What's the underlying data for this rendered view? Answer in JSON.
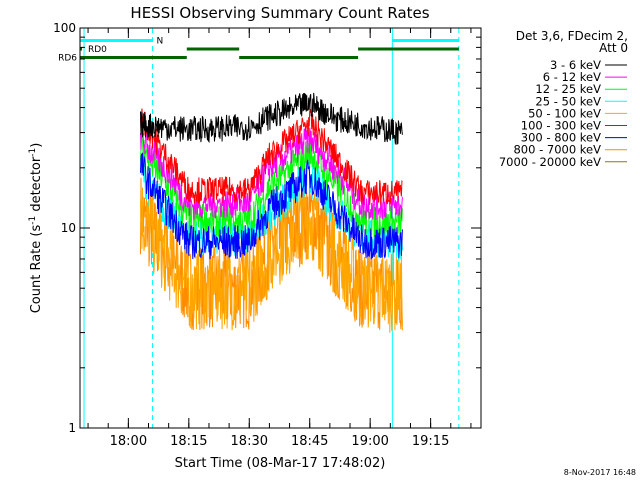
{
  "chart_data": {
    "type": "line",
    "title": "HESSI Observing Summary Count Rates",
    "xlabel": "Start Time (08-Mar-17 17:48:02)",
    "ylabel_main": "Count Rate (s",
    "ylabel_sup": "-1",
    "ylabel_tail": " detector",
    "ylabel_close": ")",
    "yscale": "log",
    "ylim": [
      1,
      100
    ],
    "y_ticks": [
      {
        "value": 1,
        "label": "1"
      },
      {
        "value": 10,
        "label": "10"
      },
      {
        "value": 100,
        "label": "100"
      }
    ],
    "xlim_minutes": [
      -12.0,
      87.5
    ],
    "x_ticks": [
      {
        "t": 0,
        "label": "18:00"
      },
      {
        "t": 15,
        "label": "18:15"
      },
      {
        "t": 30,
        "label": "18:30"
      },
      {
        "t": 45,
        "label": "18:45"
      },
      {
        "t": 60,
        "label": "19:00"
      },
      {
        "t": 75,
        "label": "19:15"
      }
    ],
    "legend_header": [
      "Det 3,6, FDecim 2,",
      "Att 0"
    ],
    "legend_position": "right",
    "timestamp": "8-Nov-2017 16:48",
    "series": [
      {
        "name": "3 - 6 keV",
        "color": "#000000",
        "x": [
          3,
          15,
          30,
          35,
          45,
          52,
          60,
          68
        ],
        "y": [
          33,
          31,
          32,
          36,
          42,
          35,
          32,
          30
        ],
        "noise": 0.07
      },
      {
        "name": "6 - 12 keV",
        "color": "#ff00ff",
        "x": [
          3,
          5,
          10,
          15,
          30,
          35,
          45,
          52,
          58,
          68
        ],
        "y": [
          29,
          25,
          19,
          13,
          13.5,
          20,
          28,
          19,
          13,
          13
        ],
        "noise": 0.08
      },
      {
        "name": "12 - 25 keV",
        "color": "#00ff00",
        "x": [
          3,
          5,
          10,
          15,
          30,
          35,
          45,
          52,
          58,
          68
        ],
        "y": [
          26,
          22,
          16,
          11,
          11,
          16,
          24,
          16,
          11,
          10.5
        ],
        "noise": 0.09
      },
      {
        "name": "25 - 50 keV",
        "color": "#00ffff",
        "x": [
          3,
          5,
          10,
          15,
          30,
          35,
          45,
          52,
          58,
          68
        ],
        "y": [
          20,
          16,
          12,
          9,
          9,
          12,
          18,
          12,
          9,
          8.5
        ],
        "noise": 0.1
      },
      {
        "name": "50 - 100 keV",
        "color": "#ffa500",
        "x": [
          3,
          5,
          10,
          15,
          30,
          35,
          45,
          52,
          58,
          68
        ],
        "y": [
          12,
          10,
          7,
          5,
          5,
          7.5,
          11.5,
          7,
          5,
          4.8
        ],
        "noise": 0.22
      },
      {
        "name": "100 - 300 keV",
        "color": "#ff0000",
        "x": [
          3,
          5,
          10,
          15,
          30,
          35,
          45,
          52,
          58,
          68
        ],
        "y": [
          36,
          31,
          22,
          15.5,
          15.5,
          23,
          34,
          22,
          15,
          15
        ],
        "noise": 0.07
      },
      {
        "name": "300 - 800 keV",
        "color": "#0000ff",
        "x": [
          3,
          5,
          10,
          15,
          30,
          35,
          45,
          52,
          58,
          68
        ],
        "y": [
          21,
          17,
          12,
          8.5,
          8.5,
          12.5,
          18.5,
          12,
          8.5,
          8.5
        ],
        "noise": 0.09
      },
      {
        "name": "800 - 7000 keV",
        "color": "#ff8c00",
        "x": [
          3,
          5,
          10,
          15,
          30,
          35,
          45,
          52,
          58,
          68
        ],
        "y": [
          12,
          10,
          7,
          5,
          5,
          7.5,
          11.5,
          7,
          5,
          4.8
        ],
        "noise": 0.22
      },
      {
        "name": "7000 - 20000 keV",
        "color": "#808000",
        "x": [],
        "y": [],
        "noise": 0
      }
    ],
    "vertical_lines": [
      {
        "t": -11.0,
        "style": "solid",
        "color": "#00ffff"
      },
      {
        "t": 6.0,
        "style": "dashed",
        "color": "#00ffff"
      },
      {
        "t": 65.5,
        "style": "solid",
        "color": "#00ffff"
      },
      {
        "t": 82.0,
        "style": "dashed",
        "color": "#00ffff"
      }
    ],
    "flag_bars": [
      {
        "label": "N",
        "color": "#00ffff",
        "level": 1,
        "segments": [
          [
            -12,
            6
          ],
          [
            65.5,
            82
          ]
        ]
      },
      {
        "label": "RD0",
        "color": "#006400",
        "level": 2,
        "segments": [
          [
            -12,
            -11.5
          ],
          [
            14.5,
            27.5
          ],
          [
            57,
            82
          ]
        ]
      },
      {
        "label": "RD6",
        "color": "#006400",
        "level": 3,
        "segments": [
          [
            -12,
            14.5
          ],
          [
            27.5,
            57
          ]
        ]
      }
    ]
  }
}
